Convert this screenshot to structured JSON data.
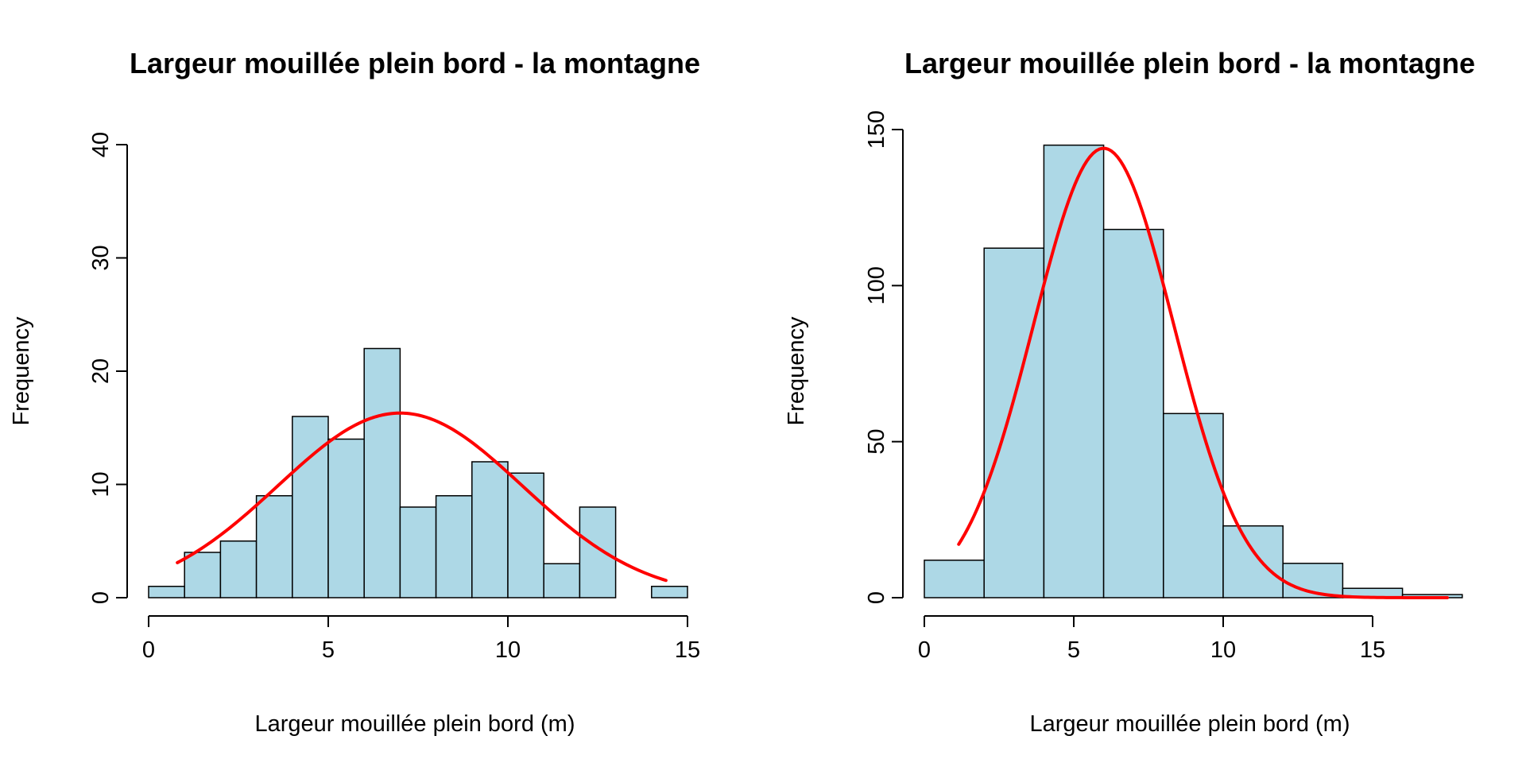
{
  "chart_data": [
    {
      "type": "bar",
      "title": "Largeur mouillée plein bord - la montagne",
      "xlabel": "Largeur mouillée plein bord (m)",
      "ylabel": "Frequency",
      "breaks": [
        0,
        1,
        2,
        3,
        4,
        5,
        6,
        7,
        8,
        9,
        10,
        11,
        12,
        13,
        14,
        15
      ],
      "values": [
        1,
        4,
        5,
        9,
        16,
        14,
        22,
        8,
        9,
        12,
        11,
        3,
        8,
        0,
        1
      ],
      "xlim": [
        0,
        15
      ],
      "ylim": [
        0,
        40
      ],
      "xticks": [
        0,
        5,
        10,
        15
      ],
      "yticks": [
        0,
        10,
        20,
        30,
        40
      ],
      "curve": {
        "type": "normal",
        "mean": 7.0,
        "sd": 3.4,
        "peak": 16.3,
        "x_range": [
          0.8,
          14.4
        ],
        "color": "#ff0000"
      },
      "bar_color": "#add8e6",
      "grid": false
    },
    {
      "type": "bar",
      "title": "Largeur mouillée plein bord - la montagne",
      "xlabel": "Largeur mouillée plein bord (m)",
      "ylabel": "Frequency",
      "breaks": [
        0,
        2,
        4,
        6,
        8,
        10,
        12,
        14,
        16,
        18
      ],
      "values": [
        12,
        112,
        145,
        118,
        59,
        23,
        11,
        3,
        1
      ],
      "xlim": [
        0,
        15
      ],
      "ylim": [
        0,
        150
      ],
      "xticks": [
        0,
        5,
        10,
        15
      ],
      "yticks": [
        0,
        50,
        100,
        150
      ],
      "curve": {
        "type": "normal",
        "mean": 6.0,
        "sd": 2.35,
        "peak": 144,
        "x_range": [
          1.15,
          17.5
        ],
        "color": "#ff0000"
      },
      "bar_color": "#add8e6",
      "grid": false
    }
  ]
}
